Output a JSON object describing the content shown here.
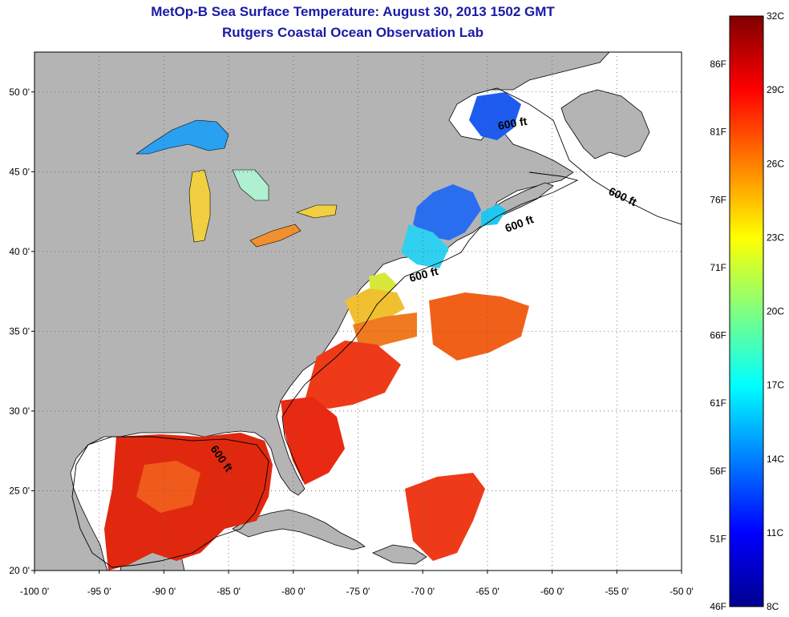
{
  "title": "MetOp-B Sea Surface Temperature:  August 30, 2013 1502 GMT",
  "subtitle": "Rutgers Coastal Ocean Observation Lab",
  "axes": {
    "lon_labels": [
      "-100 0'",
      "-95 0'",
      "-90 0'",
      "-85 0'",
      "-80 0'",
      "-75 0'",
      "-70 0'",
      "-65 0'",
      "-60 0'",
      "-55 0'",
      "-50 0'"
    ],
    "lat_labels": [
      "50 0'",
      "45 0'",
      "40 0'",
      "35 0'",
      "30 0'",
      "25 0'",
      "20 0'"
    ],
    "lon_range": [
      -100,
      -50
    ],
    "lat_range": [
      20,
      52.5
    ]
  },
  "contour_labels": [
    "600 ft",
    "600 ft",
    "600 ft",
    "600 ft",
    "600 ft"
  ],
  "colorbar": {
    "min_c": 8,
    "max_c": 32,
    "celsius_labels": [
      "32C",
      "29C",
      "26C",
      "23C",
      "20C",
      "17C",
      "14C",
      "11C",
      "8C"
    ],
    "fahrenheit_labels": [
      "86F",
      "81F",
      "76F",
      "71F",
      "66F",
      "61F",
      "56F",
      "51F",
      "46F"
    ],
    "colors": [
      "#00008f",
      "#0000ff",
      "#0080ff",
      "#00ffff",
      "#80ff80",
      "#ffff00",
      "#ff8000",
      "#ff0000",
      "#800000"
    ]
  },
  "colors": {
    "land": "#b4b4b4",
    "title": "#1a1aa6",
    "grid": "#606060"
  }
}
